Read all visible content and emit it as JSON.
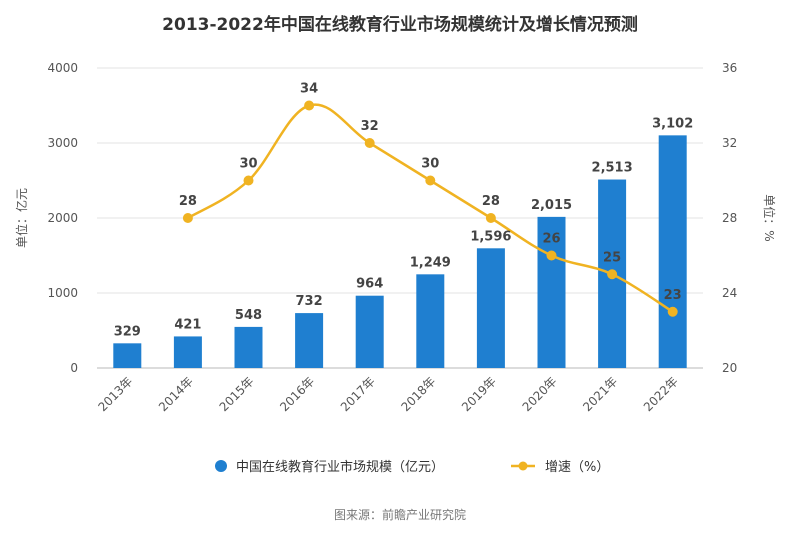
{
  "chart_data": {
    "type": "bar",
    "title": "2013-2022年中国在线教育行业市场规模统计及增长情况预测",
    "categories": [
      "2013年",
      "2014年",
      "2015年",
      "2016年",
      "2017年",
      "2018年",
      "2019年",
      "2020年",
      "2021年",
      "2022年"
    ],
    "series": [
      {
        "name": "中国在线教育行业市场规模（亿元）",
        "type": "bar",
        "axis": "left",
        "color": "#1f7fd0",
        "values": [
          329,
          421,
          548,
          732,
          964,
          1249,
          1596,
          2015,
          2513,
          3102
        ],
        "labels": [
          "329",
          "421",
          "548",
          "732",
          "964",
          "1,249",
          "1,596",
          "2,015",
          "2,513",
          "3,102"
        ]
      },
      {
        "name": "增速（%）",
        "type": "line",
        "axis": "right",
        "color": "#f0b322",
        "values": [
          null,
          28,
          30,
          34,
          32,
          30,
          28,
          26,
          25,
          23
        ],
        "labels": [
          "",
          "28",
          "30",
          "34",
          "32",
          "30",
          "28",
          "26",
          "25",
          "23"
        ]
      }
    ],
    "y_left": {
      "label": "单位：亿元",
      "ylim": [
        0,
        4000
      ],
      "ticks": [
        "0",
        "1000",
        "2000",
        "3000",
        "4000"
      ]
    },
    "y_right": {
      "label": "单位：%",
      "ylim": [
        20,
        36
      ],
      "ticks": [
        "20",
        "24",
        "28",
        "32",
        "36"
      ]
    },
    "grid": true,
    "legend_position": "bottom"
  },
  "source_text": "图来源：前瞻产业研究院"
}
